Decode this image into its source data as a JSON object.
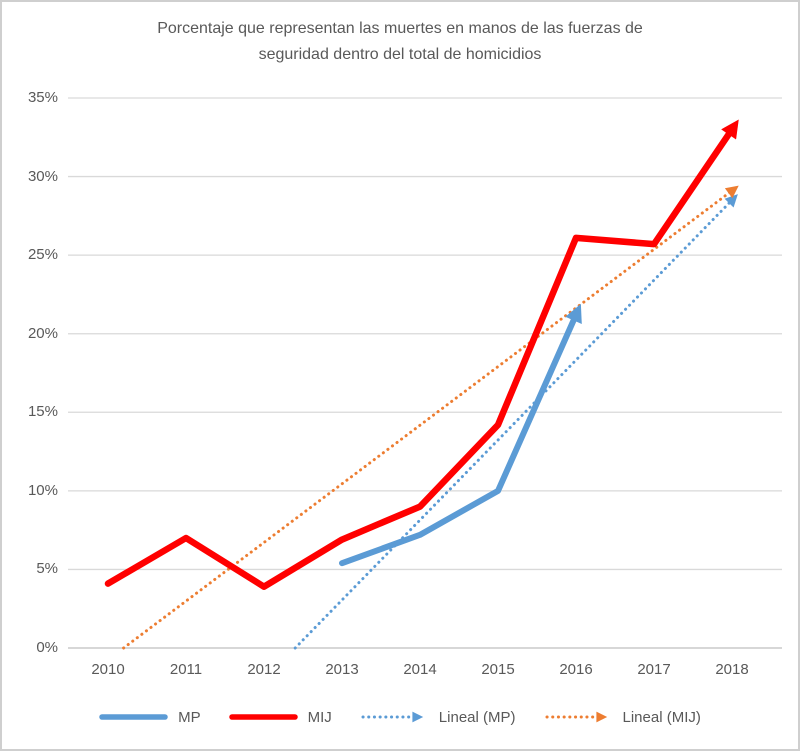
{
  "title": "Porcentaje que representan las muertes en manos de las fuerzas de seguridad dentro del total de homicidios",
  "colors": {
    "mp_blue": "#5B9BD5",
    "mij_red": "#FF0000",
    "lineal_mij_orange": "#ED7D31",
    "gridline": "#D9D9D9",
    "axis_line": "#BFBFBF",
    "text": "#595959",
    "background": "#FFFFFF",
    "frame_border": "#CFCFCF"
  },
  "chart_data": {
    "type": "line",
    "title": "Porcentaje que representan las muertes en manos de las fuerzas de seguridad dentro del total de homicidios",
    "xlabel": "",
    "ylabel": "",
    "ylim": [
      0,
      35
    ],
    "grid": true,
    "legend_position": "bottom",
    "x_labels": [
      "2010",
      "2011",
      "2012",
      "2013",
      "2014",
      "2015",
      "2016",
      "2017",
      "2018"
    ],
    "y_ticks": {
      "values": [
        0,
        5,
        10,
        15,
        20,
        25,
        30,
        35
      ],
      "labels": [
        "0%",
        "5%",
        "10%",
        "15%",
        "20%",
        "25%",
        "30%",
        "35%"
      ]
    },
    "series": [
      {
        "name": "Lineal (MP)",
        "kind": "trendline",
        "style": "dotted",
        "color": "#5B9BD5",
        "stroke_width": 3,
        "arrow_end": true,
        "x": [
          2012.4,
          2018
        ],
        "values": [
          0,
          28.5
        ]
      },
      {
        "name": "Lineal (MIJ)",
        "kind": "trendline",
        "style": "dotted",
        "color": "#ED7D31",
        "stroke_width": 3,
        "arrow_end": true,
        "x": [
          2010.2,
          2018
        ],
        "values": [
          0,
          29.1
        ]
      },
      {
        "name": "MP",
        "kind": "data",
        "style": "solid",
        "color": "#5B9BD5",
        "stroke_width": 6,
        "arrow_end": true,
        "x": [
          2013,
          2014,
          2015,
          2016
        ],
        "values": [
          5.4,
          7.2,
          10,
          21.2
        ]
      },
      {
        "name": "MIJ",
        "kind": "data",
        "style": "solid",
        "color": "#FF0000",
        "stroke_width": 6.5,
        "arrow_end": true,
        "x": [
          2010,
          2011,
          2012,
          2013,
          2014,
          2015,
          2016,
          2017,
          2018
        ],
        "values": [
          4.1,
          7,
          3.9,
          6.9,
          9,
          14.2,
          26.1,
          25.7,
          33
        ]
      }
    ],
    "legend_order": [
      "MP",
      "MIJ",
      "Lineal (MP)",
      "Lineal (MIJ)"
    ]
  }
}
